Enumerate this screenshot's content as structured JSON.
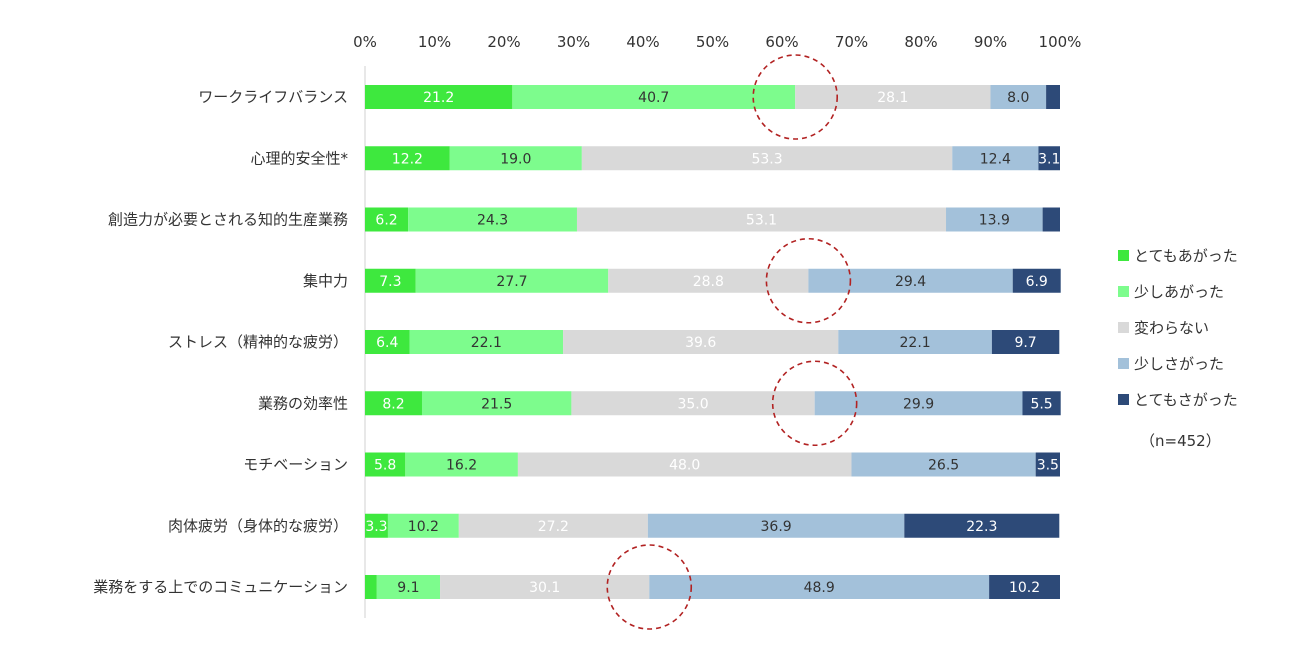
{
  "chart_data": {
    "type": "bar",
    "orientation": "horizontal",
    "stacked": true,
    "percent_axis": true,
    "xlim": [
      0,
      100
    ],
    "x_ticks": [
      "0%",
      "10%",
      "20%",
      "30%",
      "40%",
      "50%",
      "60%",
      "70%",
      "80%",
      "90%",
      "100%"
    ],
    "categories": [
      "ワークライフバランス",
      "心理的安全性*",
      "創造力が必要とされる知的生産業務",
      "集中力",
      "ストレス（精神的な疲労）",
      "業務の効率性",
      "モチベーション",
      "肉体疲労（身体的な疲労）",
      "業務をする上でのコミュニケーション"
    ],
    "series": [
      {
        "name": "とてもあがった",
        "color": "#3ee83e",
        "values": [
          21.2,
          12.2,
          6.2,
          7.3,
          6.4,
          8.2,
          5.8,
          3.3,
          1.7
        ],
        "labels": [
          "21.2",
          "12.2",
          "6.2",
          "7.3",
          "6.4",
          "8.2",
          "5.8",
          "3.3",
          ""
        ]
      },
      {
        "name": "少しあがった",
        "color": "#7dfc8d",
        "values": [
          40.7,
          19.0,
          24.3,
          27.7,
          22.1,
          21.5,
          16.2,
          10.2,
          9.1
        ],
        "labels": [
          "40.7",
          "19.0",
          "24.3",
          "27.7",
          "22.1",
          "21.5",
          "16.2",
          "10.2",
          "9.1"
        ]
      },
      {
        "name": "変わらない",
        "color": "#d9d9d9",
        "values": [
          28.1,
          53.3,
          53.1,
          28.8,
          39.6,
          35.0,
          48.0,
          27.2,
          30.1
        ],
        "labels": [
          "28.1",
          "53.3",
          "53.1",
          "28.8",
          "39.6",
          "35.0",
          "48.0",
          "27.2",
          "30.1"
        ]
      },
      {
        "name": "少しさがった",
        "color": "#a3c1da",
        "values": [
          8.0,
          12.4,
          13.9,
          29.4,
          22.1,
          29.9,
          26.5,
          36.9,
          48.9
        ],
        "labels": [
          "8.0",
          "12.4",
          "13.9",
          "29.4",
          "22.1",
          "29.9",
          "26.5",
          "36.9",
          "48.9"
        ]
      },
      {
        "name": "とてもさがった",
        "color": "#2d4a78",
        "values": [
          2.0,
          3.1,
          2.5,
          6.9,
          9.7,
          5.5,
          3.5,
          22.3,
          10.2
        ],
        "labels": [
          "",
          "3.1",
          "",
          "6.9",
          "9.7",
          "5.5",
          "3.5",
          "22.3",
          "10.2"
        ]
      }
    ],
    "label_colors": [
      "#ffffff",
      "#333333",
      "#ffffff",
      "#333333",
      "#ffffff"
    ],
    "highlight_circles_at": [
      {
        "row": 0,
        "x": 61.9
      },
      {
        "row": 3,
        "x": 63.8
      },
      {
        "row": 5,
        "x": 64.7
      },
      {
        "row": 8,
        "x": 40.9
      }
    ],
    "highlight_color": "#b22222",
    "legend_position": "right",
    "grid": false
  },
  "note": "（n=452）"
}
